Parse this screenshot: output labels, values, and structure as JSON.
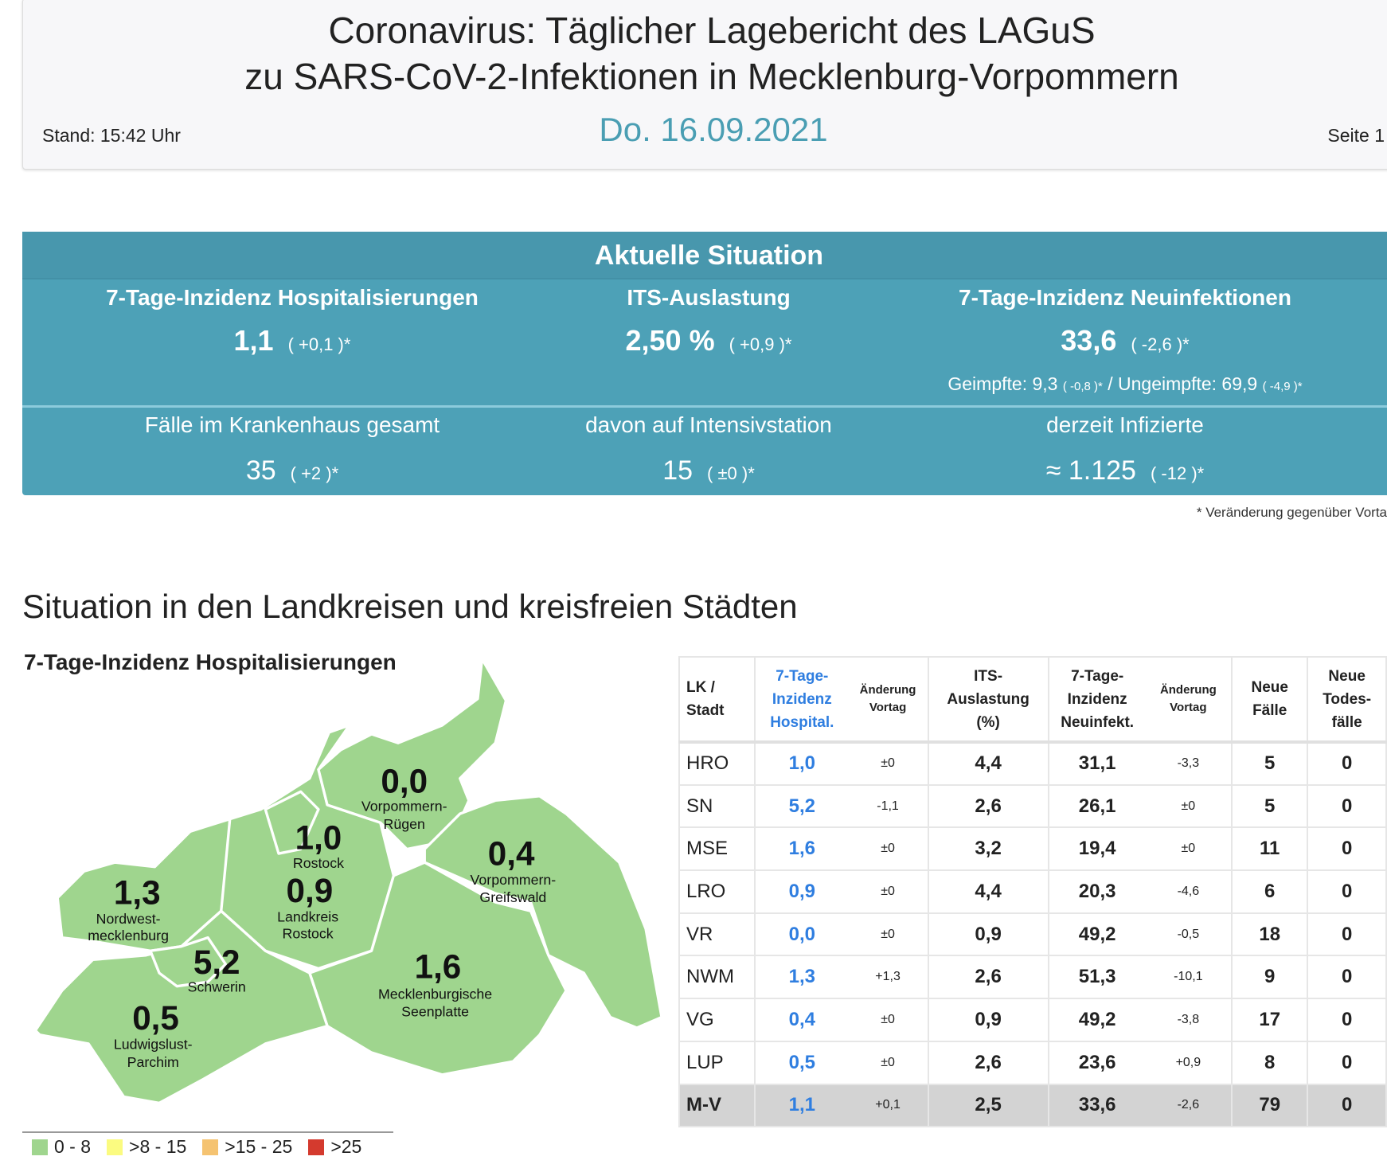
{
  "header": {
    "title_line1": "Coronavirus: Täglicher Lagebericht des LAGuS",
    "title_line2": "zu SARS-CoV-2-Infektionen in Mecklenburg-Vorpommern",
    "stand": "Stand: 15:42 Uhr",
    "date": "Do. 16.09.2021",
    "page": "Seite 1"
  },
  "situation": {
    "title": "Aktuelle Situation",
    "hosp": {
      "label": "7-Tage-Inzidenz Hospitalisierungen",
      "value": "1,1",
      "change": "( +0,1 )*"
    },
    "its": {
      "label": "ITS-Auslastung",
      "value": "2,50 %",
      "change": "( +0,9 )*"
    },
    "neu": {
      "label": "7-Tage-Inzidenz Neuinfektionen",
      "value": "33,6",
      "change": "( -2,6 )*",
      "geimpfte": "Geimpfte: 9,3",
      "geimpfte_change": "( -0,8 )*",
      "sep": "/",
      "ungeimpfte": "Ungeimpfte: 69,9",
      "ungeimpfte_change": "( -4,9 )*"
    },
    "kh": {
      "label": "Fälle im Krankenhaus gesamt",
      "value": "35",
      "change": "( +2 )*"
    },
    "intensiv": {
      "label": "davon auf Intensivstation",
      "value": "15",
      "change": "( ±0 )*"
    },
    "infiziert": {
      "label": "derzeit Infizierte",
      "value": "≈ 1.125",
      "change": "( -12 )*"
    },
    "footnote": "* Veränderung gegenüber Vorta"
  },
  "section_title": "Situation in den Landkreisen und kreisfreien Städten",
  "map": {
    "title": "7-Tage-Inzidenz Hospitalisierungen",
    "fill": "#9fd58e",
    "regions": [
      {
        "name": "Vorpommern-",
        "name2": "Rügen",
        "value": "0,0"
      },
      {
        "name": "Rostock",
        "name2": "",
        "value": "1,0"
      },
      {
        "name": "Vorpommern-",
        "name2": "Greifswald",
        "value": "0,4"
      },
      {
        "name": "Nordwest-",
        "name2": "mecklenburg",
        "value": "1,3"
      },
      {
        "name": "Landkreis",
        "name2": "Rostock",
        "value": "0,9"
      },
      {
        "name": "Schwerin",
        "name2": "",
        "value": "5,2"
      },
      {
        "name": "Mecklenburgische",
        "name2": "Seenplatte",
        "value": "1,6"
      },
      {
        "name": "Ludwigslust-",
        "name2": "Parchim",
        "value": "0,5"
      }
    ],
    "legend": [
      {
        "label": "0 - 8",
        "color": "#9fd58e"
      },
      {
        "label": ">8 - 15",
        "color": "#fbfb80"
      },
      {
        "label": ">15 - 25",
        "color": "#f5c371"
      },
      {
        "label": ">25",
        "color": "#d43a2e"
      }
    ]
  },
  "table": {
    "headers": {
      "lk": [
        "LK /",
        "Stadt"
      ],
      "hosp": [
        "7-Tage-",
        "Inzidenz",
        "Hospital."
      ],
      "chg1": [
        "Änderung",
        "Vortag"
      ],
      "its": [
        "ITS-",
        "Auslastung",
        "(%)"
      ],
      "inz": [
        "7-Tage-",
        "Inzidenz",
        "Neuinfekt."
      ],
      "chg2": [
        "Änderung",
        "Vortag"
      ],
      "faelle": [
        "Neue",
        "Fälle"
      ],
      "tod": [
        "Neue",
        "Todes-",
        "fälle"
      ]
    },
    "rows": [
      [
        "HRO",
        "1,0",
        "±0",
        "4,4",
        "31,1",
        "-3,3",
        "5",
        "0"
      ],
      [
        "SN",
        "5,2",
        "-1,1",
        "2,6",
        "26,1",
        "±0",
        "5",
        "0"
      ],
      [
        "MSE",
        "1,6",
        "±0",
        "3,2",
        "19,4",
        "±0",
        "11",
        "0"
      ],
      [
        "LRO",
        "0,9",
        "±0",
        "4,4",
        "20,3",
        "-4,6",
        "6",
        "0"
      ],
      [
        "VR",
        "0,0",
        "±0",
        "0,9",
        "49,2",
        "-0,5",
        "18",
        "0"
      ],
      [
        "NWM",
        "1,3",
        "+1,3",
        "2,6",
        "51,3",
        "-10,1",
        "9",
        "0"
      ],
      [
        "VG",
        "0,4",
        "±0",
        "0,9",
        "49,2",
        "-3,8",
        "17",
        "0"
      ],
      [
        "LUP",
        "0,5",
        "±0",
        "2,6",
        "23,6",
        "+0,9",
        "8",
        "0"
      ]
    ],
    "total": [
      "M-V",
      "1,1",
      "+0,1",
      "2,5",
      "33,6",
      "-2,6",
      "79",
      "0"
    ]
  }
}
